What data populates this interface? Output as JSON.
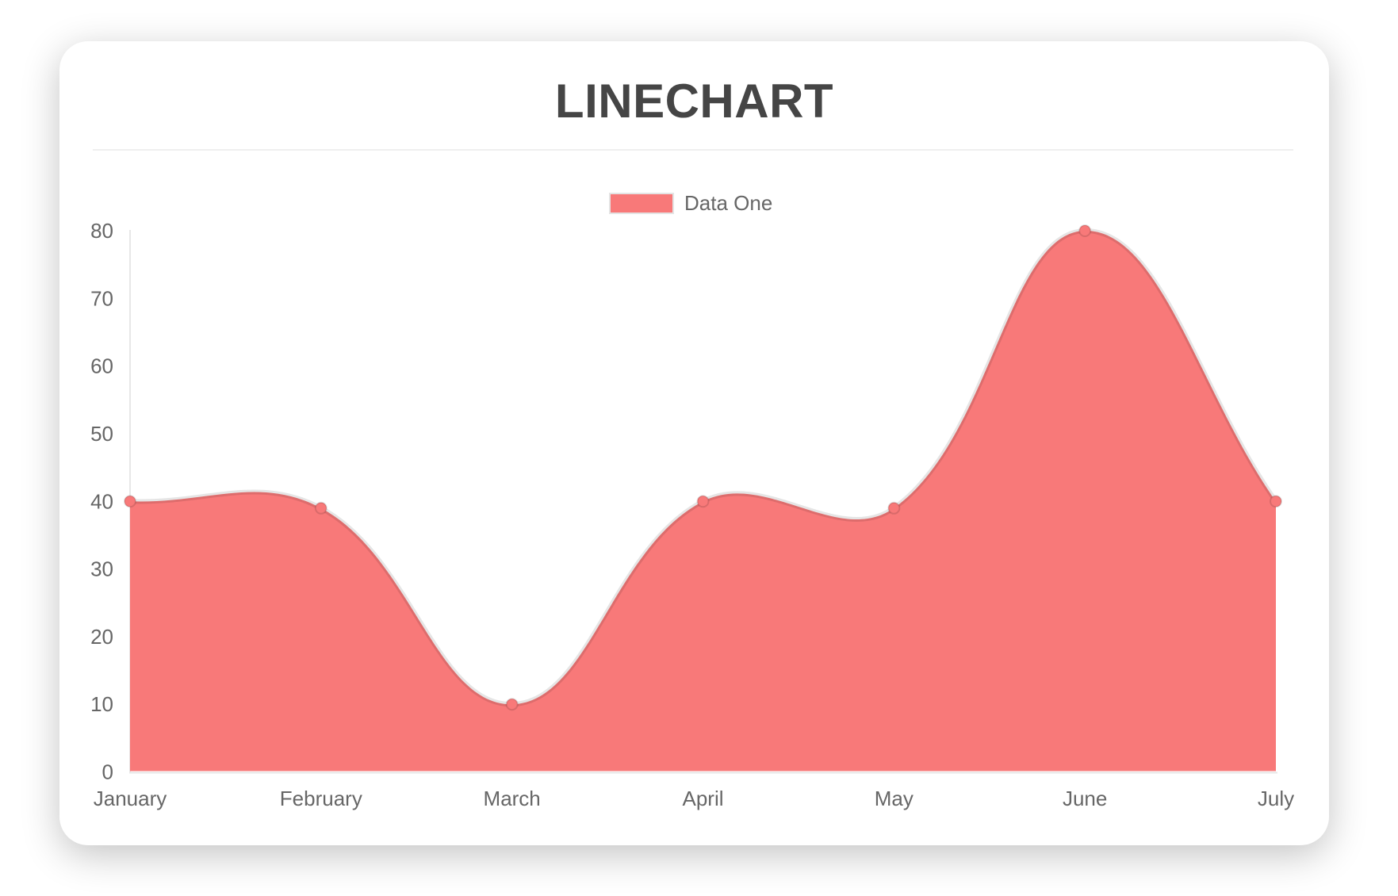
{
  "chart_data": {
    "type": "area",
    "title": "LINECHART",
    "categories": [
      "January",
      "February",
      "March",
      "April",
      "May",
      "June",
      "July"
    ],
    "series": [
      {
        "name": "Data One",
        "values": [
          40,
          39,
          10,
          40,
          39,
          80,
          40
        ],
        "fill_color": "#f87979",
        "line_color": "rgba(0,0,0,0.10)",
        "point_fill_color": "#f87979",
        "point_border_color": "rgba(0,0,0,0.12)"
      }
    ],
    "xlabel": "",
    "ylabel": "",
    "ylim": [
      0,
      80
    ],
    "ytick_step": 10,
    "yticks": [
      0,
      10,
      20,
      30,
      40,
      50,
      60,
      70,
      80
    ],
    "grid": false,
    "legend_position": "top",
    "line_tension": 0.4,
    "colors": {
      "axis_line": "#e7e7e7",
      "tick_label": "#666666",
      "title": "#454545",
      "divider": "#efefef",
      "card_background": "#ffffff"
    }
  }
}
